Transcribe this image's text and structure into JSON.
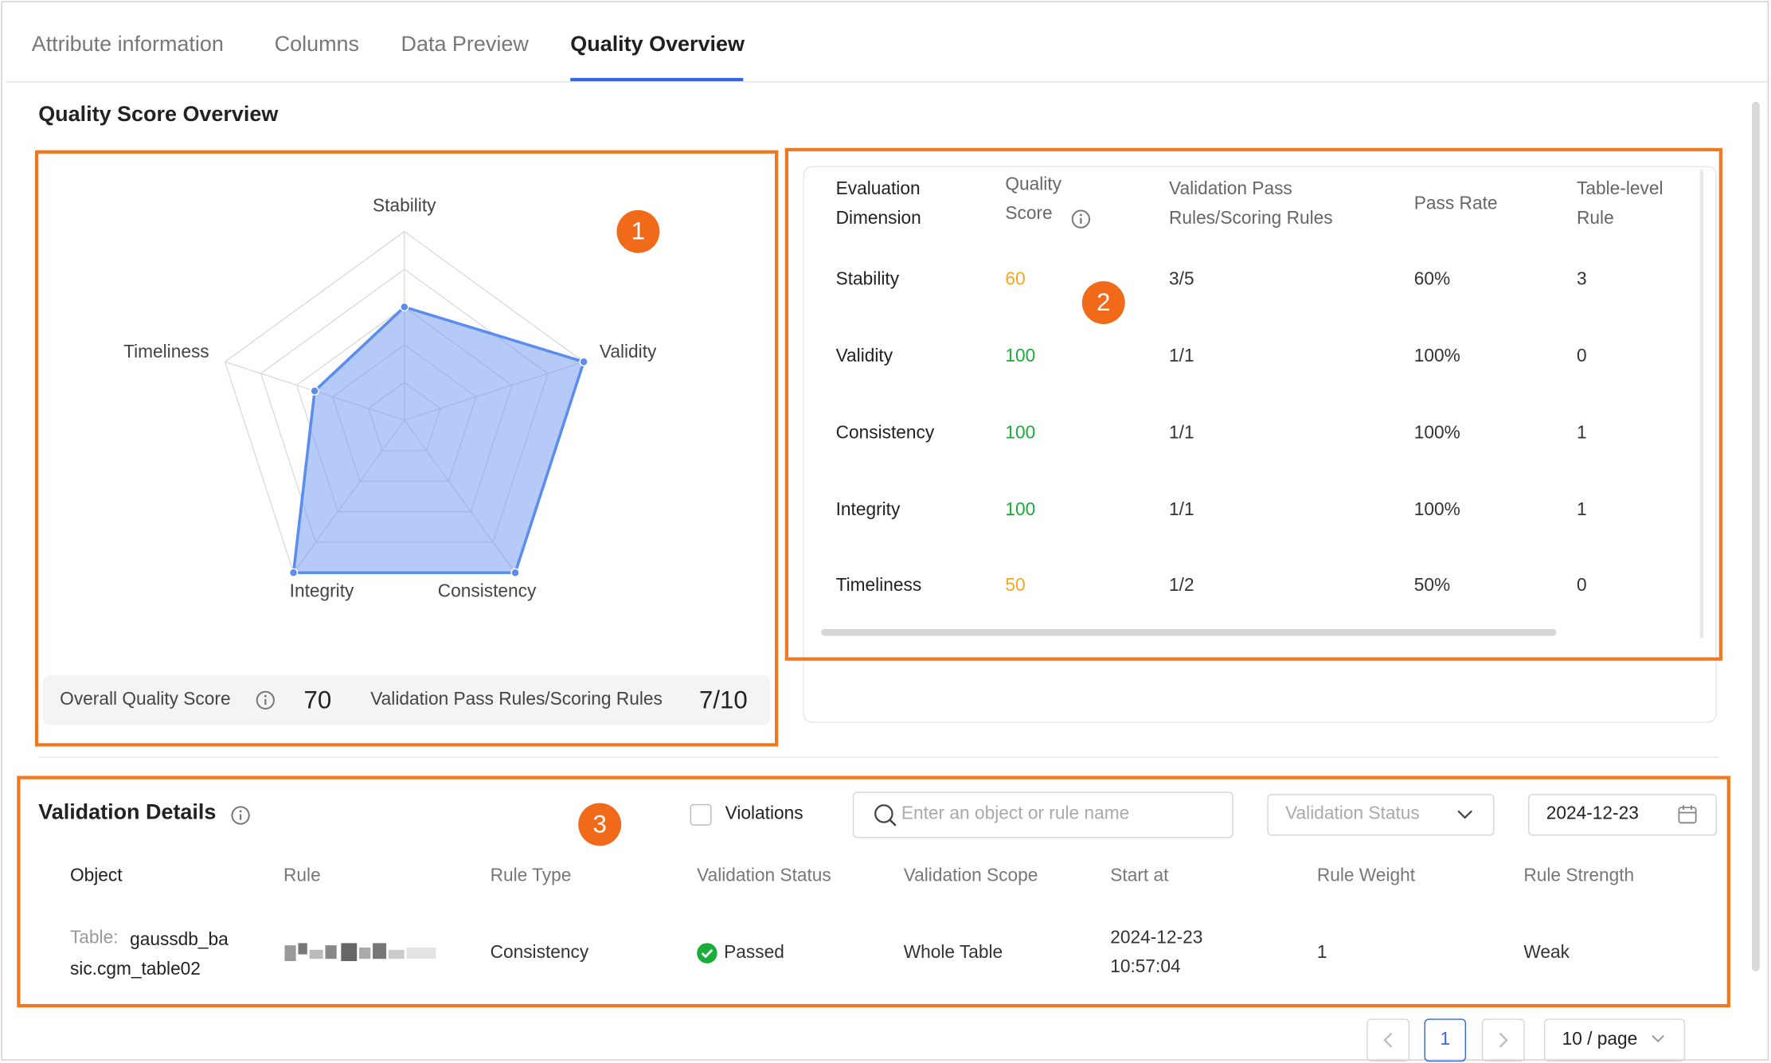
{
  "tabs": [
    "Attribute information",
    "Columns",
    "Data Preview",
    "Quality Overview"
  ],
  "section_title": "Quality Score Overview",
  "annotations": [
    "1",
    "2",
    "3"
  ],
  "summary": {
    "overall_label": "Overall Quality Score",
    "overall_value": 70,
    "rules_label": "Validation Pass Rules/Scoring Rules",
    "rules_value": "7/10"
  },
  "score_table": {
    "headers": [
      "Evaluation Dimension",
      "Quality Score",
      "Validation Pass Rules/Scoring Rules",
      "Pass Rate",
      "Table-level Rule"
    ],
    "rows": [
      {
        "dimension": "Stability",
        "score": 60,
        "score_color": "#f5a623",
        "pass_rules": "3/5",
        "pass_rate": "60%",
        "table_rule": 3
      },
      {
        "dimension": "Validity",
        "score": 100,
        "score_color": "#1aad3a",
        "pass_rules": "1/1",
        "pass_rate": "100%",
        "table_rule": 0
      },
      {
        "dimension": "Consistency",
        "score": 100,
        "score_color": "#1aad3a",
        "pass_rules": "1/1",
        "pass_rate": "100%",
        "table_rule": 1
      },
      {
        "dimension": "Integrity",
        "score": 100,
        "score_color": "#1aad3a",
        "pass_rules": "1/1",
        "pass_rate": "100%",
        "table_rule": 1
      },
      {
        "dimension": "Timeliness",
        "score": 50,
        "score_color": "#f5a623",
        "pass_rules": "1/2",
        "pass_rate": "50%",
        "table_rule": 0
      }
    ]
  },
  "validation": {
    "title": "Validation Details",
    "violations": "Violations",
    "search_placeholder": "Enter an object or rule name",
    "status_placeholder": "Validation Status",
    "date": "2024-12-23",
    "headers": [
      "Object",
      "Rule",
      "Rule Type",
      "Validation Status",
      "Validation Scope",
      "Start at",
      "Rule Weight",
      "Rule Strength"
    ],
    "rows": [
      {
        "object_prefix": "Table:",
        "object": "gaussdb_basic.cgm_table02",
        "rule_type": "Consistency",
        "status": "Passed",
        "scope": "Whole Table",
        "start": "2024-12-23 10:57:04",
        "weight": 1,
        "strength": "Weak"
      }
    ]
  },
  "pagination": {
    "page": 1,
    "page_size": "10 / page"
  }
}
